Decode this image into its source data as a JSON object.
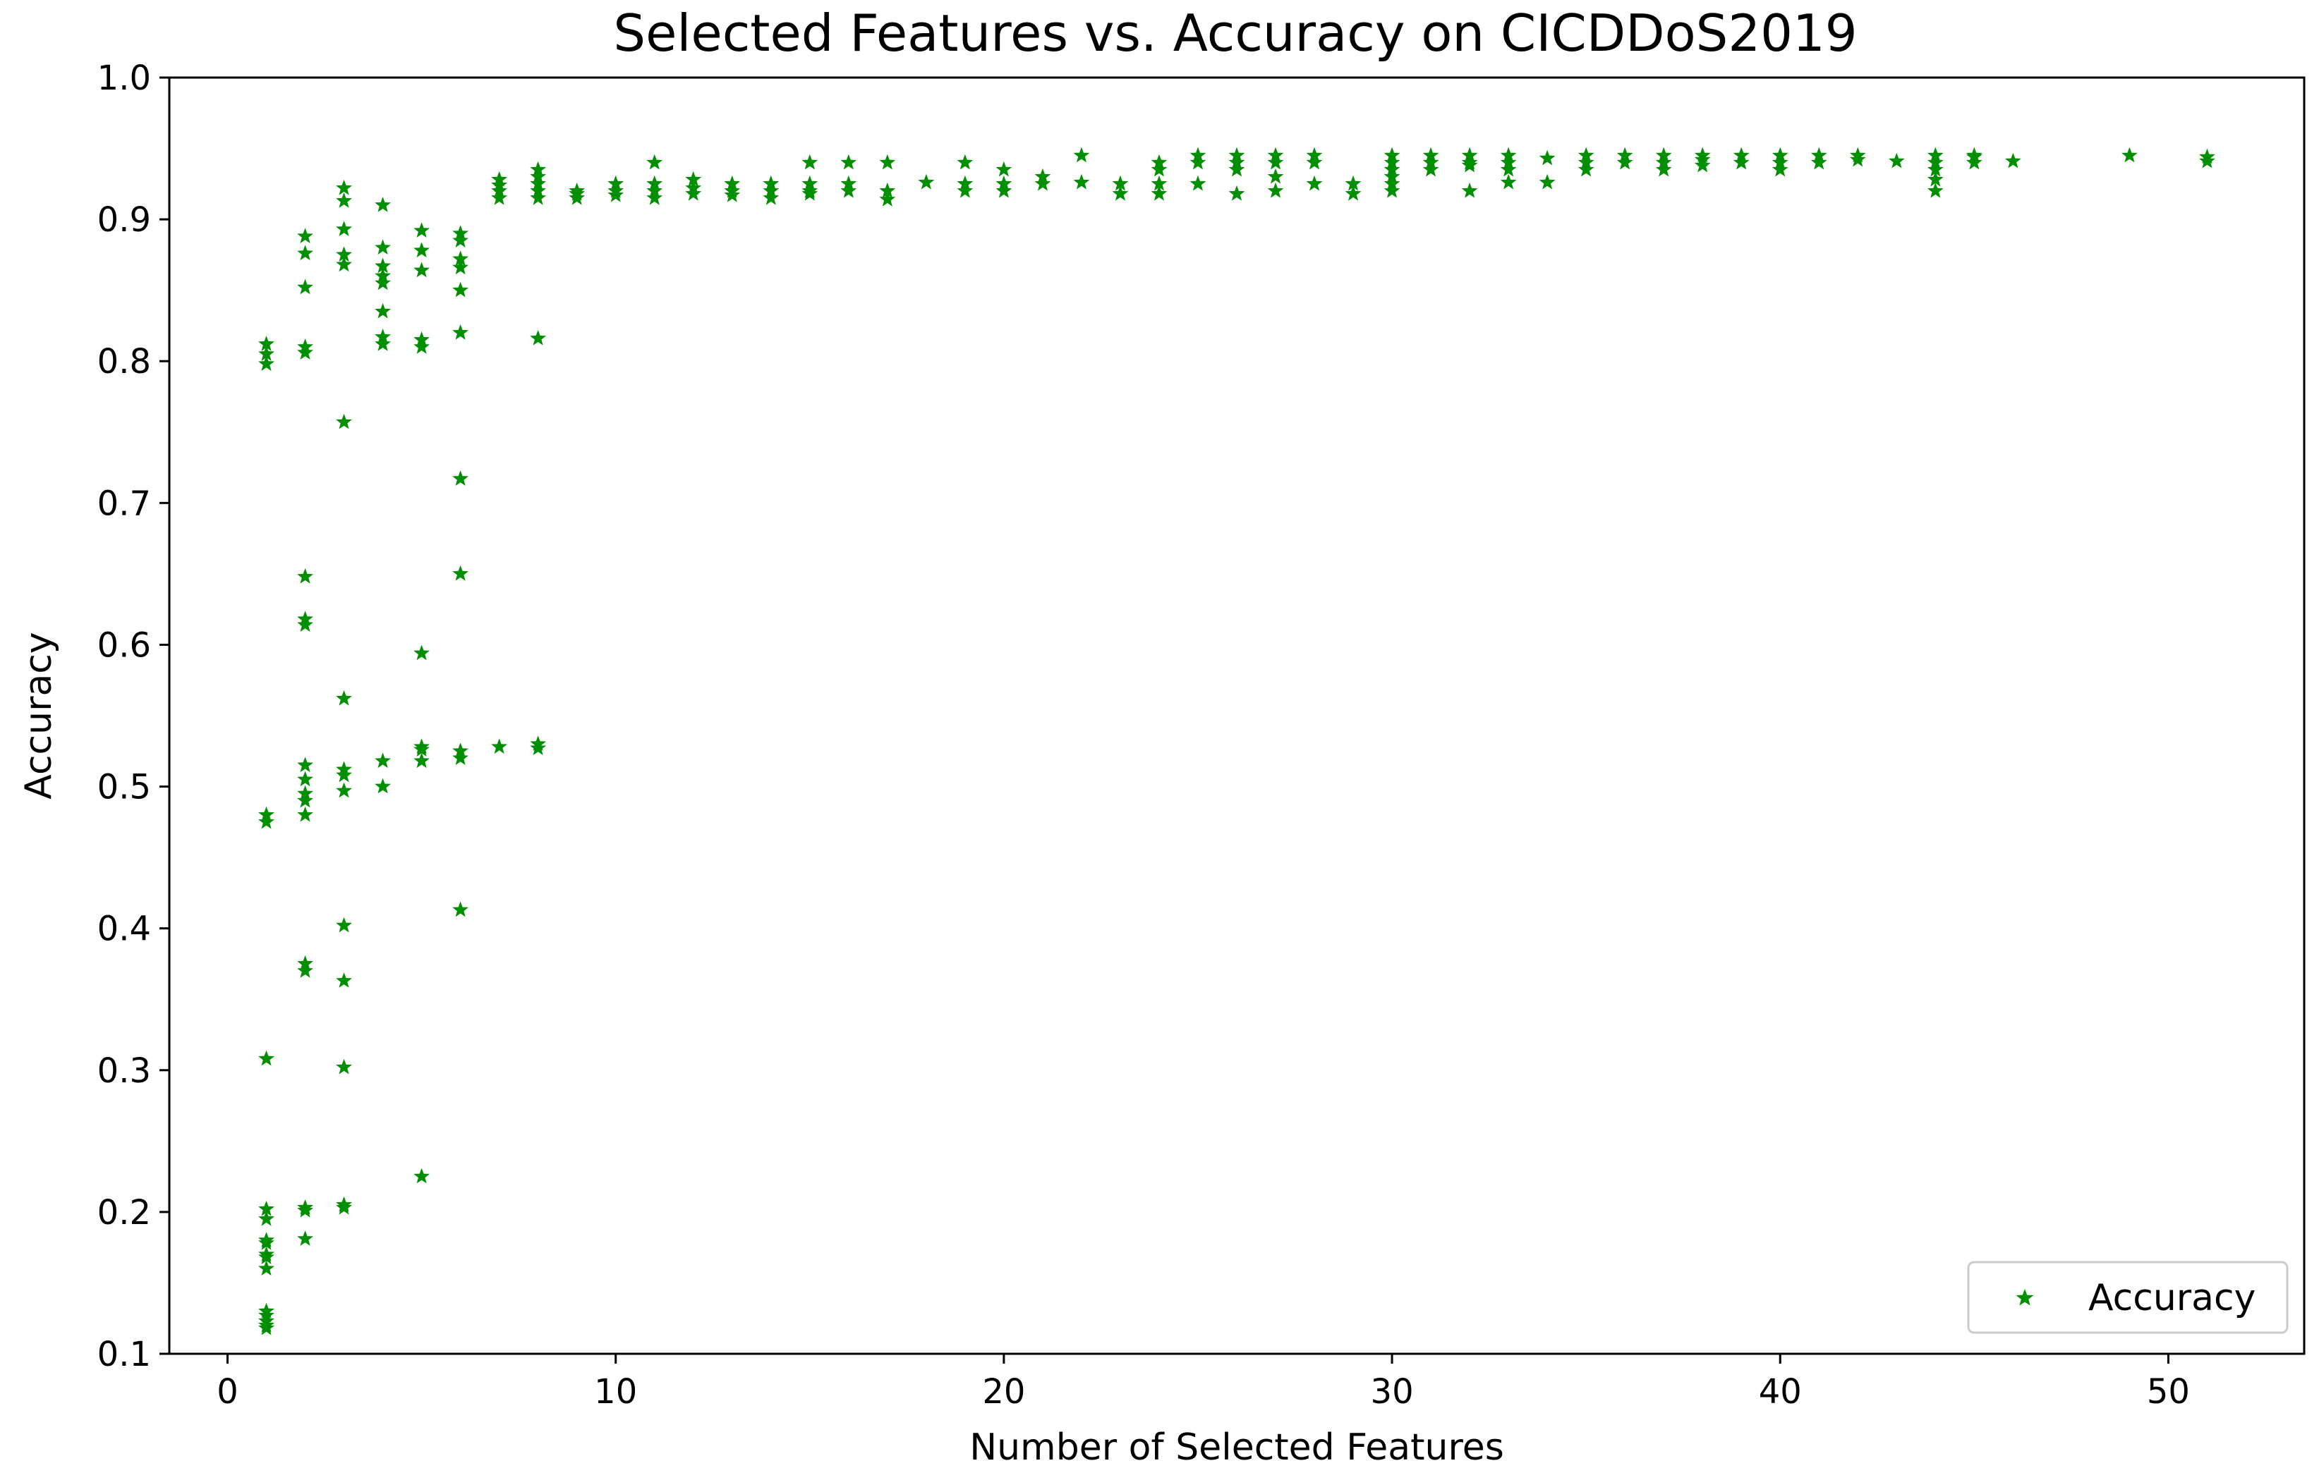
{
  "chart_data": {
    "type": "scatter",
    "title": "Selected Features vs. Accuracy on CICDDoS2019",
    "xlabel": "Number of Selected Features",
    "ylabel": "Accuracy",
    "xlim": [
      -1.5,
      53.5
    ],
    "ylim": [
      0.1,
      1.0
    ],
    "xticks": [
      0,
      10,
      20,
      30,
      40,
      50
    ],
    "yticks": [
      0.1,
      0.2,
      0.3,
      0.4,
      0.5,
      0.6,
      0.7,
      0.8,
      0.9,
      1.0
    ],
    "xtick_labels": [
      "0",
      "10",
      "20",
      "30",
      "40",
      "50"
    ],
    "ytick_labels": [
      "0.1",
      "0.2",
      "0.3",
      "0.4",
      "0.5",
      "0.6",
      "0.7",
      "0.8",
      "0.9",
      "1.0"
    ],
    "grid": false,
    "legend_position": "bottom-right",
    "marker": "star",
    "color": "#008f00",
    "series": [
      {
        "name": "Accuracy",
        "x": [
          1,
          1,
          1,
          1,
          1,
          1,
          1,
          1,
          1,
          1,
          1,
          1,
          1,
          1,
          1,
          1,
          1,
          1,
          2,
          2,
          2,
          2,
          2,
          2,
          2,
          2,
          2,
          2,
          2,
          2,
          2,
          2,
          2,
          2,
          2,
          2,
          3,
          3,
          3,
          3,
          3,
          3,
          3,
          3,
          3,
          3,
          3,
          3,
          3,
          3,
          3,
          4,
          4,
          4,
          4,
          4,
          4,
          4,
          4,
          4,
          4,
          5,
          5,
          5,
          5,
          5,
          5,
          5,
          5,
          5,
          5,
          6,
          6,
          6,
          6,
          6,
          6,
          6,
          6,
          6,
          6,
          6,
          7,
          7,
          7,
          7,
          7,
          8,
          8,
          8,
          8,
          8,
          8,
          8,
          8,
          9,
          9,
          9,
          10,
          10,
          10,
          11,
          11,
          11,
          11,
          12,
          12,
          12,
          13,
          13,
          13,
          14,
          14,
          14,
          15,
          15,
          15,
          15,
          16,
          16,
          16,
          17,
          17,
          17,
          18,
          19,
          19,
          19,
          20,
          20,
          20,
          21,
          21,
          22,
          22,
          23,
          23,
          24,
          24,
          24,
          24,
          25,
          25,
          25,
          26,
          26,
          26,
          26,
          27,
          27,
          27,
          27,
          28,
          28,
          28,
          29,
          29,
          30,
          30,
          30,
          30,
          30,
          30,
          31,
          31,
          31,
          32,
          32,
          32,
          32,
          33,
          33,
          33,
          33,
          34,
          34,
          35,
          35,
          35,
          36,
          36,
          37,
          37,
          37,
          38,
          38,
          38,
          39,
          39,
          40,
          40,
          40,
          41,
          41,
          42,
          42,
          43,
          44,
          44,
          44,
          44,
          44,
          45,
          45,
          45,
          46,
          49,
          51,
          51
        ],
        "y": [
          0.812,
          0.805,
          0.798,
          0.48,
          0.475,
          0.308,
          0.202,
          0.195,
          0.18,
          0.178,
          0.17,
          0.168,
          0.16,
          0.13,
          0.127,
          0.123,
          0.12,
          0.118,
          0.888,
          0.876,
          0.852,
          0.81,
          0.806,
          0.648,
          0.618,
          0.614,
          0.515,
          0.505,
          0.495,
          0.49,
          0.48,
          0.375,
          0.37,
          0.203,
          0.201,
          0.181,
          0.922,
          0.913,
          0.893,
          0.875,
          0.868,
          0.757,
          0.562,
          0.512,
          0.508,
          0.497,
          0.402,
          0.363,
          0.302,
          0.205,
          0.203,
          0.91,
          0.88,
          0.867,
          0.86,
          0.855,
          0.835,
          0.817,
          0.812,
          0.518,
          0.5,
          0.892,
          0.878,
          0.864,
          0.815,
          0.81,
          0.594,
          0.528,
          0.526,
          0.518,
          0.225,
          0.89,
          0.885,
          0.872,
          0.866,
          0.85,
          0.82,
          0.717,
          0.65,
          0.525,
          0.52,
          0.413,
          0.928,
          0.924,
          0.92,
          0.915,
          0.528,
          0.935,
          0.93,
          0.925,
          0.92,
          0.915,
          0.816,
          0.53,
          0.527,
          0.92,
          0.918,
          0.915,
          0.925,
          0.92,
          0.917,
          0.94,
          0.925,
          0.92,
          0.915,
          0.928,
          0.922,
          0.918,
          0.925,
          0.92,
          0.917,
          0.925,
          0.92,
          0.915,
          0.94,
          0.925,
          0.92,
          0.918,
          0.94,
          0.925,
          0.92,
          0.94,
          0.92,
          0.914,
          0.926,
          0.94,
          0.925,
          0.92,
          0.935,
          0.925,
          0.92,
          0.93,
          0.925,
          0.945,
          0.926,
          0.925,
          0.918,
          0.94,
          0.935,
          0.925,
          0.918,
          0.945,
          0.94,
          0.925,
          0.945,
          0.94,
          0.935,
          0.918,
          0.945,
          0.94,
          0.93,
          0.92,
          0.945,
          0.94,
          0.925,
          0.925,
          0.918,
          0.945,
          0.94,
          0.935,
          0.93,
          0.925,
          0.92,
          0.945,
          0.94,
          0.935,
          0.945,
          0.94,
          0.938,
          0.92,
          0.945,
          0.94,
          0.935,
          0.926,
          0.943,
          0.926,
          0.945,
          0.94,
          0.935,
          0.945,
          0.94,
          0.945,
          0.94,
          0.935,
          0.945,
          0.942,
          0.938,
          0.945,
          0.94,
          0.945,
          0.94,
          0.935,
          0.945,
          0.94,
          0.945,
          0.942,
          0.941,
          0.945,
          0.94,
          0.935,
          0.928,
          0.92,
          0.945,
          0.94,
          0.944,
          0.941,
          0.945,
          0.944,
          0.941
        ]
      }
    ]
  }
}
